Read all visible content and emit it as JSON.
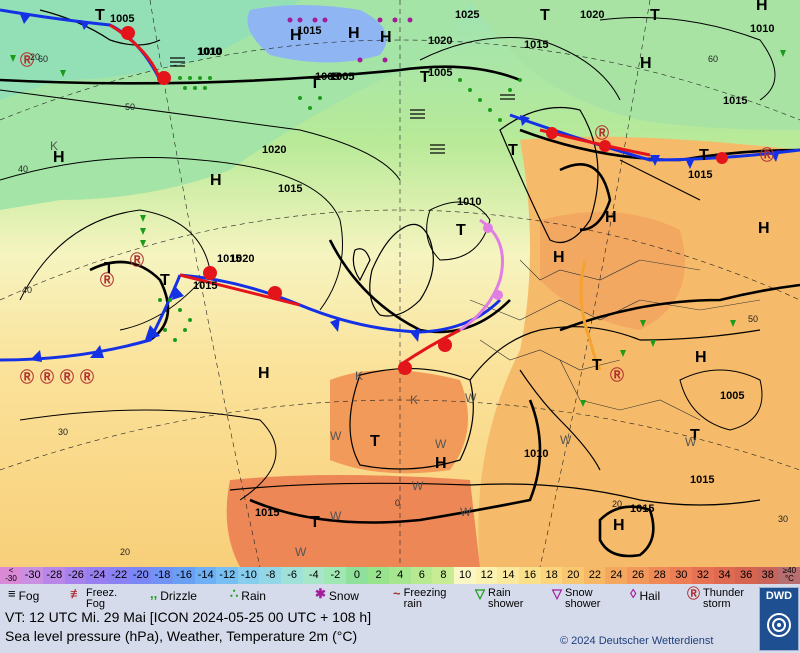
{
  "map": {
    "isobars": [
      "1005",
      "1010",
      "1015",
      "1020",
      "1025",
      "1015",
      "1020",
      "1015",
      "1010",
      "1015",
      "1005",
      "1005",
      "1010",
      "1020",
      "1015",
      "1015",
      "1015",
      "1010",
      "1015",
      "1005",
      "1015",
      "1015",
      "1005",
      "1020",
      "1010",
      "1005"
    ],
    "pressure_centers": [
      "H",
      "H",
      "H",
      "H",
      "H",
      "H",
      "H",
      "H",
      "H",
      "H",
      "H",
      "H",
      "H",
      "H",
      "T",
      "T",
      "T",
      "T",
      "T",
      "T",
      "T",
      "T",
      "T",
      "T",
      "T",
      "T",
      "T",
      "T"
    ],
    "lat_labels": [
      "40",
      "30",
      "20",
      "50",
      "60",
      "60",
      "50",
      "40",
      "30",
      "20",
      "0",
      "20"
    ],
    "feature_letters": [
      "K",
      "K",
      "K",
      "W",
      "W",
      "W",
      "W",
      "W",
      "W",
      "W",
      "W",
      "W"
    ]
  },
  "colorbar": {
    "values": [
      "<\n-30",
      "-30",
      "-28",
      "-26",
      "-24",
      "-22",
      "-20",
      "-18",
      "-16",
      "-14",
      "-12",
      "-10",
      "-8",
      "-6",
      "-4",
      "-2",
      "0",
      "2",
      "4",
      "6",
      "8",
      "10",
      "12",
      "14",
      "16",
      "18",
      "20",
      "22",
      "24",
      "26",
      "28",
      "30",
      "32",
      "34",
      "36",
      "38",
      "≥40\n°C"
    ],
    "colors": [
      "#d989d6",
      "#c98fe0",
      "#b887e8",
      "#a782ec",
      "#977ff0",
      "#8a82f3",
      "#7a87f4",
      "#7293f4",
      "#6aa0f4",
      "#6fb0f4",
      "#77bff2",
      "#86cdee",
      "#93d7e6",
      "#9fe0d9",
      "#a8e6c9",
      "#9fe7b3",
      "#8fe09b",
      "#98e38e",
      "#a6e68e",
      "#b6e990",
      "#c8ec93",
      "#faf7c4",
      "#fbf2b0",
      "#fbe99d",
      "#fbe08a",
      "#fbd47c",
      "#f9c770",
      "#f7b866",
      "#f4a85f",
      "#f2985a",
      "#ef8a57",
      "#ec7d55",
      "#e77253",
      "#df6a52",
      "#d56551",
      "#c8645a",
      "#b66e70"
    ]
  },
  "legend": [
    {
      "icon": "fog-icon",
      "label": "Fog"
    },
    {
      "icon": "freezing-fog-icon",
      "label": "Freez.\nFog"
    },
    {
      "icon": "drizzle-icon",
      "label": "Drizzle"
    },
    {
      "icon": "rain-icon",
      "label": "Rain"
    },
    {
      "icon": "snow-icon",
      "label": "Snow"
    },
    {
      "icon": "freezing-rain-icon",
      "label": "Freezing\nrain"
    },
    {
      "icon": "rain-shower-icon",
      "label": "Rain\nshower"
    },
    {
      "icon": "snow-shower-icon",
      "label": "Snow\nshower"
    },
    {
      "icon": "hail-icon",
      "label": "Hail"
    },
    {
      "icon": "thunderstorm-icon",
      "label": "Thunder\nstorm"
    }
  ],
  "valid_time": "VT: 12 UTC Mi.  29 Mai [ICON 2024-05-25  00 UTC + 108 h]",
  "description": "Sea level pressure (hPa), Weather, Temperature 2m (°C)",
  "copyright": "© 2024 Deutscher Wetterdienst",
  "logo_text": "DWD",
  "colors": {
    "warm_front": "#e4141b",
    "cold_front": "#1431e6",
    "occlusion": "#e17ee3",
    "trough": "#f4a330",
    "isobar": "#000000"
  }
}
